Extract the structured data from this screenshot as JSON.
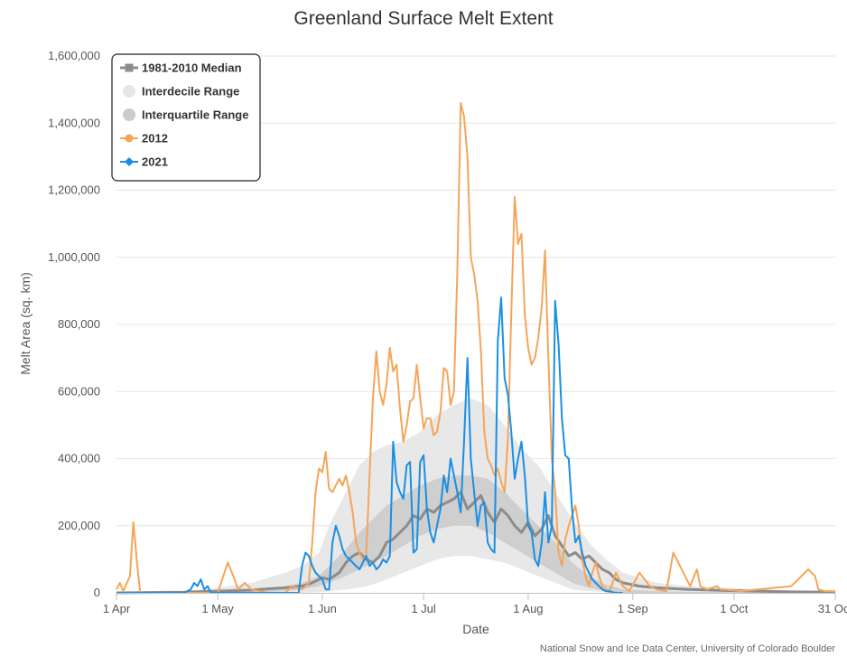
{
  "chart_data": {
    "type": "line",
    "title": "Greenland Surface Melt Extent",
    "xlabel": "Date",
    "ylabel": "Melt Area (sq. km)",
    "credit": "National Snow and Ice Data Center, University of Colorado Boulder",
    "xlim": [
      0,
      213
    ],
    "ylim": [
      0,
      1600000
    ],
    "x_ticks": [
      {
        "day": 0,
        "label": "1 Apr"
      },
      {
        "day": 30,
        "label": "1 May"
      },
      {
        "day": 61,
        "label": "1 Jun"
      },
      {
        "day": 91,
        "label": "1 Jul"
      },
      {
        "day": 122,
        "label": "1 Aug"
      },
      {
        "day": 153,
        "label": "1 Sep"
      },
      {
        "day": 183,
        "label": "1 Oct"
      },
      {
        "day": 213,
        "label": "31 Oct"
      }
    ],
    "y_ticks": [
      {
        "value": 0,
        "label": "0"
      },
      {
        "value": 200000,
        "label": "200,000"
      },
      {
        "value": 400000,
        "label": "400,000"
      },
      {
        "value": 600000,
        "label": "600,000"
      },
      {
        "value": 800000,
        "label": "800,000"
      },
      {
        "value": 1000000,
        "label": "1,000,000"
      },
      {
        "value": 1200000,
        "label": "1,200,000"
      },
      {
        "value": 1400000,
        "label": "1,400,000"
      },
      {
        "value": 1600000,
        "label": "1,600,000"
      }
    ],
    "legend": [
      {
        "name": "1981-2010 Median",
        "color": "#8c8c8c",
        "marker": "square"
      },
      {
        "name": "Interdecile Range",
        "color": "#e6e6e6",
        "marker": "circle"
      },
      {
        "name": "Interquartile Range",
        "color": "#cccccc",
        "marker": "circle"
      },
      {
        "name": "2012",
        "color": "#f5a55a",
        "marker": "circle"
      },
      {
        "name": "2021",
        "color": "#1a8fe3",
        "marker": "diamond"
      }
    ],
    "bands": {
      "x": [
        0,
        20,
        30,
        40,
        50,
        55,
        60,
        63,
        68,
        72,
        76,
        80,
        85,
        90,
        95,
        100,
        105,
        110,
        115,
        120,
        125,
        130,
        135,
        140,
        145,
        150,
        160,
        170,
        180,
        190,
        200,
        213
      ],
      "interdecile_low": [
        0,
        0,
        0,
        0,
        0,
        0,
        2000,
        5000,
        10000,
        15000,
        25000,
        40000,
        60000,
        80000,
        100000,
        110000,
        110000,
        100000,
        90000,
        70000,
        50000,
        30000,
        10000,
        5000,
        2000,
        0,
        0,
        0,
        0,
        0,
        0,
        0
      ],
      "interdecile_high": [
        0,
        5000,
        15000,
        30000,
        60000,
        80000,
        120000,
        200000,
        300000,
        380000,
        420000,
        440000,
        450000,
        480000,
        530000,
        560000,
        580000,
        560000,
        500000,
        430000,
        380000,
        300000,
        220000,
        150000,
        100000,
        60000,
        30000,
        20000,
        15000,
        10000,
        5000,
        2000
      ],
      "interquartile_low": [
        0,
        0,
        0,
        0,
        5000,
        10000,
        20000,
        30000,
        50000,
        70000,
        90000,
        110000,
        140000,
        170000,
        190000,
        200000,
        200000,
        180000,
        150000,
        120000,
        90000,
        60000,
        30000,
        15000,
        5000,
        0,
        0,
        0,
        0,
        0,
        0,
        0
      ],
      "interquartile_high": [
        0,
        0,
        5000,
        10000,
        20000,
        30000,
        50000,
        80000,
        130000,
        180000,
        220000,
        260000,
        290000,
        320000,
        340000,
        350000,
        350000,
        340000,
        300000,
        250000,
        200000,
        150000,
        90000,
        50000,
        25000,
        10000,
        5000,
        3000,
        2000,
        1000,
        0,
        0
      ]
    },
    "series": [
      {
        "name": "1981-2010 Median",
        "color": "#8c8c8c",
        "x": [
          0,
          20,
          30,
          40,
          45,
          50,
          55,
          58,
          61,
          63,
          66,
          68,
          70,
          72,
          74,
          76,
          78,
          80,
          82,
          84,
          86,
          88,
          90,
          92,
          94,
          96,
          98,
          100,
          102,
          104,
          106,
          108,
          110,
          112,
          114,
          116,
          118,
          120,
          122,
          124,
          126,
          128,
          130,
          132,
          134,
          136,
          138,
          140,
          142,
          144,
          146,
          148,
          150,
          155,
          160,
          170,
          180,
          190,
          200,
          213
        ],
        "values": [
          0,
          2000,
          5000,
          8000,
          12000,
          15000,
          20000,
          30000,
          45000,
          40000,
          60000,
          90000,
          110000,
          120000,
          100000,
          90000,
          110000,
          150000,
          160000,
          180000,
          200000,
          230000,
          220000,
          250000,
          240000,
          260000,
          270000,
          280000,
          300000,
          250000,
          270000,
          290000,
          240000,
          210000,
          250000,
          230000,
          200000,
          180000,
          210000,
          170000,
          190000,
          230000,
          170000,
          140000,
          110000,
          120000,
          100000,
          110000,
          90000,
          70000,
          60000,
          40000,
          30000,
          20000,
          15000,
          10000,
          7000,
          5000,
          3000,
          2000
        ]
      },
      {
        "name": "2012",
        "color": "#f5a55a",
        "x": [
          0,
          1,
          2,
          4,
          5,
          6,
          7,
          10,
          20,
          30,
          33,
          35,
          36,
          38,
          40,
          45,
          50,
          52,
          55,
          57,
          58,
          59,
          60,
          61,
          62,
          63,
          64,
          65,
          66,
          67,
          68,
          69,
          70,
          71,
          72,
          73,
          74,
          75,
          76,
          77,
          78,
          79,
          80,
          81,
          82,
          83,
          84,
          85,
          86,
          87,
          88,
          89,
          90,
          91,
          92,
          93,
          94,
          95,
          96,
          97,
          98,
          99,
          100,
          101,
          102,
          103,
          104,
          105,
          106,
          107,
          108,
          109,
          110,
          111,
          112,
          113,
          114,
          115,
          116,
          117,
          118,
          119,
          120,
          121,
          122,
          123,
          124,
          125,
          126,
          127,
          128,
          129,
          130,
          131,
          132,
          133,
          134,
          135,
          136,
          137,
          138,
          139,
          140,
          141,
          142,
          143,
          144,
          145,
          146,
          148,
          150,
          152,
          155,
          158,
          160,
          163,
          165,
          170,
          172,
          173,
          175,
          178,
          179,
          180,
          185,
          190,
          200,
          205,
          207,
          208,
          210,
          213
        ],
        "values": [
          10000,
          30000,
          5000,
          50000,
          210000,
          100000,
          0,
          0,
          0,
          0,
          90000,
          40000,
          10000,
          30000,
          10000,
          0,
          0,
          20000,
          10000,
          30000,
          150000,
          300000,
          370000,
          360000,
          420000,
          310000,
          300000,
          320000,
          340000,
          320000,
          350000,
          300000,
          240000,
          150000,
          120000,
          100000,
          110000,
          350000,
          580000,
          720000,
          600000,
          560000,
          620000,
          730000,
          660000,
          680000,
          550000,
          450000,
          500000,
          570000,
          580000,
          680000,
          580000,
          490000,
          520000,
          520000,
          470000,
          480000,
          540000,
          670000,
          660000,
          560000,
          600000,
          950000,
          1460000,
          1420000,
          1300000,
          1000000,
          950000,
          870000,
          720000,
          480000,
          400000,
          380000,
          350000,
          370000,
          330000,
          300000,
          460000,
          830000,
          1180000,
          1040000,
          1070000,
          830000,
          730000,
          680000,
          700000,
          760000,
          850000,
          1020000,
          700000,
          400000,
          300000,
          120000,
          80000,
          160000,
          200000,
          230000,
          260000,
          200000,
          100000,
          50000,
          20000,
          60000,
          90000,
          50000,
          20000,
          10000,
          0,
          60000,
          20000,
          5000,
          60000,
          20000,
          10000,
          5000,
          120000,
          20000,
          70000,
          20000,
          10000,
          20000,
          10000,
          10000,
          5000,
          10000,
          20000,
          70000,
          50000,
          10000,
          5000,
          5000
        ]
      },
      {
        "name": "2021",
        "color": "#1a8fe3",
        "x": [
          0,
          5,
          10,
          20,
          22,
          23,
          24,
          25,
          26,
          27,
          28,
          30,
          40,
          45,
          50,
          54,
          55,
          56,
          57,
          58,
          59,
          60,
          61,
          62,
          63,
          64,
          65,
          66,
          67,
          68,
          69,
          70,
          71,
          72,
          73,
          74,
          75,
          76,
          77,
          78,
          79,
          80,
          81,
          82,
          83,
          84,
          85,
          86,
          87,
          88,
          89,
          90,
          91,
          92,
          93,
          94,
          95,
          96,
          97,
          98,
          99,
          100,
          101,
          102,
          103,
          104,
          105,
          106,
          107,
          108,
          109,
          110,
          111,
          112,
          113,
          114,
          115,
          116,
          117,
          118,
          119,
          120,
          121,
          122,
          123,
          124,
          125,
          126,
          127,
          128,
          129,
          130,
          131,
          132,
          133,
          134,
          135,
          136,
          137,
          138,
          139,
          140,
          141,
          142,
          143,
          144,
          145,
          146,
          147,
          148,
          149,
          150
        ],
        "values": [
          0,
          0,
          0,
          0,
          10000,
          30000,
          20000,
          40000,
          10000,
          20000,
          0,
          0,
          0,
          0,
          0,
          0,
          80000,
          120000,
          110000,
          80000,
          60000,
          50000,
          40000,
          10000,
          10000,
          150000,
          200000,
          170000,
          130000,
          110000,
          100000,
          90000,
          80000,
          70000,
          90000,
          110000,
          80000,
          90000,
          70000,
          80000,
          100000,
          90000,
          110000,
          450000,
          330000,
          300000,
          280000,
          380000,
          390000,
          120000,
          130000,
          390000,
          410000,
          250000,
          180000,
          150000,
          200000,
          250000,
          350000,
          300000,
          400000,
          350000,
          300000,
          240000,
          450000,
          700000,
          400000,
          300000,
          200000,
          260000,
          270000,
          150000,
          130000,
          120000,
          750000,
          880000,
          640000,
          590000,
          480000,
          340000,
          400000,
          450000,
          350000,
          200000,
          180000,
          100000,
          80000,
          150000,
          300000,
          150000,
          200000,
          870000,
          740000,
          520000,
          410000,
          400000,
          250000,
          150000,
          170000,
          120000,
          80000,
          60000,
          40000,
          30000,
          20000,
          10000,
          5000,
          5000,
          2000,
          0,
          0,
          0
        ]
      }
    ]
  }
}
